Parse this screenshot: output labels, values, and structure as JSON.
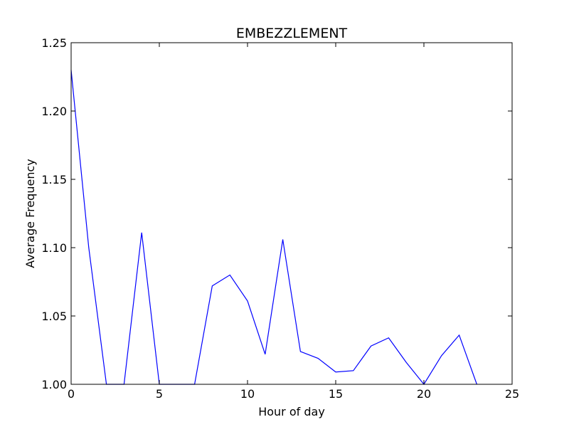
{
  "chart_data": {
    "type": "line",
    "title": "EMBEZZLEMENT",
    "xlabel": "Hour of day",
    "ylabel": "Average Frequency",
    "xlim": [
      0,
      25
    ],
    "ylim": [
      1.0,
      1.25
    ],
    "x_ticks": [
      0,
      5,
      10,
      15,
      20,
      25
    ],
    "x_tick_labels": [
      "0",
      "5",
      "10",
      "15",
      "20",
      "25"
    ],
    "y_ticks": [
      1.0,
      1.05,
      1.1,
      1.15,
      1.2,
      1.25
    ],
    "y_tick_labels": [
      "1.00",
      "1.05",
      "1.10",
      "1.15",
      "1.20",
      "1.25"
    ],
    "grid": false,
    "series": [
      {
        "color": "#0000ff",
        "x": [
          0,
          1,
          2,
          3,
          4,
          5,
          6,
          7,
          8,
          9,
          10,
          11,
          12,
          13,
          14,
          15,
          16,
          17,
          18,
          19,
          20,
          21,
          22,
          23
        ],
        "y": [
          1.23,
          1.1,
          1.0,
          1.0,
          1.111,
          1.0,
          1.0,
          1.0,
          1.072,
          1.08,
          1.061,
          1.022,
          1.106,
          1.024,
          1.019,
          1.009,
          1.01,
          1.028,
          1.034,
          1.016,
          1.0,
          1.021,
          1.036,
          1.0
        ]
      }
    ]
  }
}
